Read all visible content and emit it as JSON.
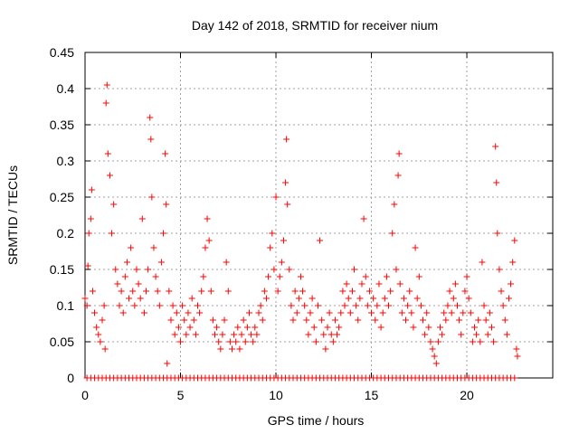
{
  "chart_data": {
    "type": "scatter",
    "title": "Day 142 of 2018, SRMTID for receiver nium",
    "xlabel": "GPS time / hours",
    "ylabel": "SRMTID / TECUs",
    "xlim": [
      0,
      24.5
    ],
    "ylim": [
      0,
      0.45
    ],
    "xticks": [
      0,
      5,
      10,
      15,
      20
    ],
    "xtick_labels": [
      "0",
      "5",
      "10",
      "15",
      "20"
    ],
    "yticks": [
      0,
      0.05,
      0.1,
      0.15,
      0.2,
      0.25,
      0.3,
      0.35,
      0.4,
      0.45
    ],
    "ytick_labels": [
      "0",
      "0.05",
      "0.1",
      "0.15",
      "0.2",
      "0.25",
      "0.3",
      "0.35",
      "0.4",
      "0.45"
    ],
    "grid": true,
    "marker": "+",
    "marker_color": "#ff0000",
    "series": [
      {
        "name": "SRMTID",
        "points": [
          [
            0.0,
            0.11
          ],
          [
            0.1,
            0.1
          ],
          [
            0.15,
            0.155
          ],
          [
            0.2,
            0.2
          ],
          [
            0.3,
            0.22
          ],
          [
            0.35,
            0.26
          ],
          [
            0.4,
            0.12
          ],
          [
            0.5,
            0.09
          ],
          [
            0.6,
            0.07
          ],
          [
            0.7,
            0.06
          ],
          [
            0.8,
            0.05
          ],
          [
            0.9,
            0.08
          ],
          [
            1.0,
            0.1
          ],
          [
            1.05,
            0.04
          ],
          [
            1.1,
            0.38
          ],
          [
            1.15,
            0.405
          ],
          [
            1.2,
            0.31
          ],
          [
            1.3,
            0.28
          ],
          [
            1.4,
            0.2
          ],
          [
            1.5,
            0.24
          ],
          [
            1.6,
            0.15
          ],
          [
            1.7,
            0.13
          ],
          [
            1.8,
            0.1
          ],
          [
            1.9,
            0.12
          ],
          [
            2.0,
            0.09
          ],
          [
            2.1,
            0.14
          ],
          [
            2.2,
            0.16
          ],
          [
            2.3,
            0.11
          ],
          [
            2.4,
            0.18
          ],
          [
            2.5,
            0.12
          ],
          [
            2.6,
            0.1
          ],
          [
            2.7,
            0.15
          ],
          [
            2.8,
            0.13
          ],
          [
            2.9,
            0.11
          ],
          [
            3.0,
            0.22
          ],
          [
            3.1,
            0.09
          ],
          [
            3.2,
            0.12
          ],
          [
            3.3,
            0.15
          ],
          [
            3.4,
            0.36
          ],
          [
            3.45,
            0.33
          ],
          [
            3.5,
            0.25
          ],
          [
            3.6,
            0.18
          ],
          [
            3.7,
            0.14
          ],
          [
            3.8,
            0.12
          ],
          [
            3.9,
            0.1
          ],
          [
            4.0,
            0.16
          ],
          [
            4.1,
            0.2
          ],
          [
            4.2,
            0.31
          ],
          [
            4.25,
            0.24
          ],
          [
            4.3,
            0.02
          ],
          [
            4.4,
            0.12
          ],
          [
            4.5,
            0.08
          ],
          [
            4.6,
            0.1
          ],
          [
            4.7,
            0.06
          ],
          [
            4.8,
            0.09
          ],
          [
            4.9,
            0.07
          ],
          [
            5.0,
            0.05
          ],
          [
            5.1,
            0.1
          ],
          [
            5.2,
            0.08
          ],
          [
            5.3,
            0.06
          ],
          [
            5.4,
            0.09
          ],
          [
            5.5,
            0.07
          ],
          [
            5.6,
            0.11
          ],
          [
            5.7,
            0.08
          ],
          [
            5.8,
            0.06
          ],
          [
            5.9,
            0.1
          ],
          [
            6.0,
            0.09
          ],
          [
            6.1,
            0.12
          ],
          [
            6.2,
            0.14
          ],
          [
            6.3,
            0.18
          ],
          [
            6.4,
            0.22
          ],
          [
            6.5,
            0.19
          ],
          [
            6.6,
            0.12
          ],
          [
            6.7,
            0.08
          ],
          [
            6.8,
            0.06
          ],
          [
            6.9,
            0.07
          ],
          [
            7.0,
            0.05
          ],
          [
            7.1,
            0.04
          ],
          [
            7.2,
            0.06
          ],
          [
            7.3,
            0.08
          ],
          [
            7.4,
            0.16
          ],
          [
            7.5,
            0.12
          ],
          [
            7.6,
            0.05
          ],
          [
            7.7,
            0.04
          ],
          [
            7.8,
            0.06
          ],
          [
            7.9,
            0.05
          ],
          [
            8.0,
            0.07
          ],
          [
            8.1,
            0.04
          ],
          [
            8.2,
            0.06
          ],
          [
            8.3,
            0.08
          ],
          [
            8.4,
            0.05
          ],
          [
            8.5,
            0.07
          ],
          [
            8.6,
            0.09
          ],
          [
            8.7,
            0.06
          ],
          [
            8.8,
            0.05
          ],
          [
            8.9,
            0.07
          ],
          [
            9.0,
            0.06
          ],
          [
            9.1,
            0.09
          ],
          [
            9.2,
            0.1
          ],
          [
            9.3,
            0.08
          ],
          [
            9.4,
            0.12
          ],
          [
            9.5,
            0.11
          ],
          [
            9.6,
            0.14
          ],
          [
            9.7,
            0.18
          ],
          [
            9.8,
            0.2
          ],
          [
            9.9,
            0.15
          ],
          [
            10.0,
            0.25
          ],
          [
            10.1,
            0.12
          ],
          [
            10.2,
            0.14
          ],
          [
            10.3,
            0.16
          ],
          [
            10.4,
            0.19
          ],
          [
            10.5,
            0.27
          ],
          [
            10.55,
            0.33
          ],
          [
            10.6,
            0.24
          ],
          [
            10.7,
            0.15
          ],
          [
            10.8,
            0.1
          ],
          [
            10.9,
            0.08
          ],
          [
            11.0,
            0.12
          ],
          [
            11.1,
            0.09
          ],
          [
            11.2,
            0.11
          ],
          [
            11.3,
            0.14
          ],
          [
            11.4,
            0.12
          ],
          [
            11.5,
            0.1
          ],
          [
            11.6,
            0.08
          ],
          [
            11.7,
            0.06
          ],
          [
            11.8,
            0.09
          ],
          [
            11.9,
            0.11
          ],
          [
            12.0,
            0.07
          ],
          [
            12.1,
            0.05
          ],
          [
            12.2,
            0.1
          ],
          [
            12.3,
            0.19
          ],
          [
            12.4,
            0.08
          ],
          [
            12.5,
            0.06
          ],
          [
            12.6,
            0.04
          ],
          [
            12.7,
            0.07
          ],
          [
            12.8,
            0.09
          ],
          [
            12.9,
            0.06
          ],
          [
            13.0,
            0.05
          ],
          [
            13.1,
            0.08
          ],
          [
            13.2,
            0.06
          ],
          [
            13.3,
            0.07
          ],
          [
            13.4,
            0.09
          ],
          [
            13.5,
            0.12
          ],
          [
            13.6,
            0.1
          ],
          [
            13.7,
            0.13
          ],
          [
            13.8,
            0.11
          ],
          [
            13.9,
            0.09
          ],
          [
            14.0,
            0.12
          ],
          [
            14.1,
            0.15
          ],
          [
            14.2,
            0.1
          ],
          [
            14.3,
            0.08
          ],
          [
            14.4,
            0.11
          ],
          [
            14.5,
            0.13
          ],
          [
            14.6,
            0.22
          ],
          [
            14.7,
            0.14
          ],
          [
            14.8,
            0.1
          ],
          [
            14.9,
            0.12
          ],
          [
            15.0,
            0.09
          ],
          [
            15.1,
            0.11
          ],
          [
            15.2,
            0.08
          ],
          [
            15.3,
            0.1
          ],
          [
            15.4,
            0.13
          ],
          [
            15.5,
            0.07
          ],
          [
            15.6,
            0.09
          ],
          [
            15.7,
            0.11
          ],
          [
            15.8,
            0.14
          ],
          [
            15.9,
            0.1
          ],
          [
            16.0,
            0.12
          ],
          [
            16.1,
            0.2
          ],
          [
            16.2,
            0.24
          ],
          [
            16.3,
            0.15
          ],
          [
            16.4,
            0.28
          ],
          [
            16.45,
            0.31
          ],
          [
            16.5,
            0.13
          ],
          [
            16.6,
            0.09
          ],
          [
            16.7,
            0.11
          ],
          [
            16.8,
            0.08
          ],
          [
            16.9,
            0.1
          ],
          [
            17.0,
            0.12
          ],
          [
            17.1,
            0.09
          ],
          [
            17.2,
            0.07
          ],
          [
            17.3,
            0.18
          ],
          [
            17.4,
            0.11
          ],
          [
            17.5,
            0.14
          ],
          [
            17.6,
            0.1
          ],
          [
            17.7,
            0.08
          ],
          [
            17.8,
            0.06
          ],
          [
            17.9,
            0.09
          ],
          [
            18.0,
            0.07
          ],
          [
            18.1,
            0.05
          ],
          [
            18.2,
            0.04
          ],
          [
            18.3,
            0.03
          ],
          [
            18.4,
            0.02
          ],
          [
            18.5,
            0.05
          ],
          [
            18.6,
            0.07
          ],
          [
            18.7,
            0.06
          ],
          [
            18.8,
            0.09
          ],
          [
            18.9,
            0.08
          ],
          [
            19.0,
            0.1
          ],
          [
            19.1,
            0.12
          ],
          [
            19.2,
            0.09
          ],
          [
            19.3,
            0.11
          ],
          [
            19.4,
            0.13
          ],
          [
            19.5,
            0.1
          ],
          [
            19.6,
            0.08
          ],
          [
            19.7,
            0.06
          ],
          [
            19.8,
            0.09
          ],
          [
            19.9,
            0.12
          ],
          [
            20.0,
            0.14
          ],
          [
            20.1,
            0.11
          ],
          [
            20.2,
            0.09
          ],
          [
            20.3,
            0.05
          ],
          [
            20.4,
            0.07
          ],
          [
            20.5,
            0.06
          ],
          [
            20.6,
            0.08
          ],
          [
            20.7,
            0.05
          ],
          [
            20.8,
            0.16
          ],
          [
            20.9,
            0.1
          ],
          [
            21.0,
            0.08
          ],
          [
            21.1,
            0.06
          ],
          [
            21.2,
            0.09
          ],
          [
            21.3,
            0.07
          ],
          [
            21.4,
            0.05
          ],
          [
            21.5,
            0.32
          ],
          [
            21.55,
            0.27
          ],
          [
            21.6,
            0.2
          ],
          [
            21.7,
            0.15
          ],
          [
            21.8,
            0.12
          ],
          [
            21.9,
            0.1
          ],
          [
            22.0,
            0.08
          ],
          [
            22.1,
            0.06
          ],
          [
            22.2,
            0.11
          ],
          [
            22.3,
            0.13
          ],
          [
            22.4,
            0.16
          ],
          [
            22.5,
            0.19
          ],
          [
            22.6,
            0.04
          ],
          [
            22.65,
            0.03
          ]
        ],
        "zero_points_x": [
          0.1,
          0.3,
          0.5,
          0.7,
          0.9,
          1.1,
          1.3,
          1.5,
          1.7,
          1.9,
          2.1,
          2.3,
          2.5,
          2.7,
          2.9,
          3.1,
          3.3,
          3.5,
          3.7,
          3.9,
          4.1,
          4.3,
          4.5,
          4.7,
          4.9,
          5.1,
          5.3,
          5.5,
          5.7,
          5.9,
          6.1,
          6.3,
          6.5,
          6.7,
          6.9,
          7.1,
          7.3,
          7.5,
          7.7,
          7.9,
          8.1,
          8.3,
          8.5,
          8.7,
          8.9,
          9.1,
          9.3,
          9.5,
          9.7,
          9.9,
          10.1,
          10.3,
          10.5,
          10.7,
          10.9,
          11.1,
          11.3,
          11.5,
          11.7,
          11.9,
          12.1,
          12.3,
          12.5,
          12.7,
          12.9,
          13.1,
          13.3,
          13.5,
          13.7,
          13.9,
          14.1,
          14.3,
          14.5,
          14.7,
          14.9,
          15.1,
          15.3,
          15.5,
          15.7,
          15.9,
          16.1,
          16.3,
          16.5,
          16.7,
          16.9,
          17.1,
          17.3,
          17.5,
          17.7,
          17.9,
          18.1,
          18.3,
          18.5,
          18.7,
          18.9,
          19.1,
          19.3,
          19.5,
          19.7,
          19.9,
          20.1,
          20.3,
          20.5,
          20.7,
          20.9,
          21.1,
          21.3,
          21.5,
          21.7,
          21.9,
          22.1,
          22.3,
          22.5
        ]
      }
    ]
  }
}
